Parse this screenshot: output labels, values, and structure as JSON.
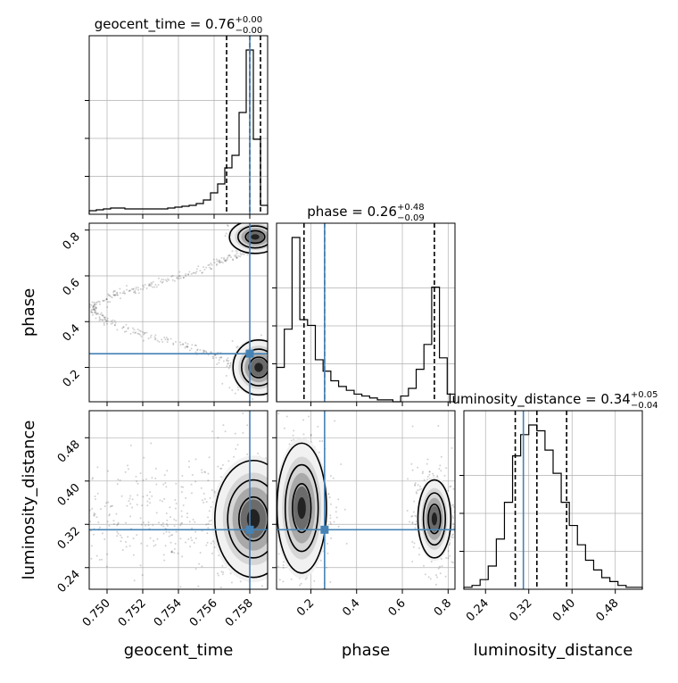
{
  "chart_data": {
    "type": "corner",
    "colors": {
      "truth": "#4682b4",
      "contour": "#000000",
      "grid": "#b0b0b0",
      "quantile": "#000000"
    },
    "parameters": [
      {
        "id": "geocent_time",
        "label": "geocent_time",
        "range": [
          0.749,
          0.759
        ],
        "title_prefix": "geocent_time = ",
        "title_value": "0.76",
        "title_plus": "+0.00",
        "title_minus": "−0.00",
        "truth": 0.758,
        "quantiles": [
          0.7567,
          0.758,
          0.7586
        ],
        "ticks": [
          0.75,
          0.752,
          0.754,
          0.756,
          0.758
        ],
        "tick_labels": [
          "0.750",
          "0.752",
          "0.754",
          "0.756",
          "0.758"
        ],
        "hist": [
          0.02,
          0.025,
          0.03,
          0.035,
          0.035,
          0.03,
          0.03,
          0.03,
          0.03,
          0.03,
          0.03,
          0.035,
          0.04,
          0.045,
          0.05,
          0.06,
          0.08,
          0.12,
          0.17,
          0.26,
          0.33,
          0.57,
          0.92,
          0.42,
          0.05
        ]
      },
      {
        "id": "phase",
        "label": "phase",
        "range": [
          0.05,
          0.83
        ],
        "title_prefix": "phase = ",
        "title_value": "0.26",
        "title_plus": "+0.48",
        "title_minus": "−0.09",
        "truth": 0.26,
        "quantiles": [
          0.17,
          0.26,
          0.74
        ],
        "ticks": [
          0.2,
          0.4,
          0.6,
          0.8
        ],
        "tick_labels": [
          "0.2",
          "0.4",
          "0.6",
          "0.8"
        ],
        "hist": [
          0.18,
          0.38,
          0.86,
          0.43,
          0.4,
          0.22,
          0.16,
          0.11,
          0.08,
          0.06,
          0.04,
          0.03,
          0.02,
          0.01,
          0.01,
          0.0,
          0.03,
          0.07,
          0.17,
          0.3,
          0.6,
          0.23,
          0.04
        ]
      },
      {
        "id": "luminosity_distance",
        "label": "luminosity_distance",
        "range": [
          0.2,
          0.53
        ],
        "title_prefix": "luminosity_distance = ",
        "title_value": "0.34",
        "title_plus": "+0.05",
        "title_minus": "−0.04",
        "truth": 0.31,
        "quantiles": [
          0.295,
          0.335,
          0.39
        ],
        "ticks": [
          0.24,
          0.32,
          0.4,
          0.48
        ],
        "tick_labels": [
          "0.24",
          "0.32",
          "0.40",
          "0.48"
        ],
        "hist": [
          0.01,
          0.02,
          0.05,
          0.12,
          0.26,
          0.45,
          0.69,
          0.8,
          0.85,
          0.82,
          0.72,
          0.6,
          0.45,
          0.33,
          0.23,
          0.15,
          0.1,
          0.06,
          0.04,
          0.02,
          0.01,
          0.01
        ]
      }
    ],
    "pairs": [
      {
        "x": "geocent_time",
        "y": "phase",
        "modes": [
          {
            "x": 0.7585,
            "y": 0.2,
            "sx": 0.0006,
            "sy": 0.05
          },
          {
            "x": 0.7583,
            "y": 0.77,
            "sx": 0.0006,
            "sy": 0.03
          }
        ]
      },
      {
        "x": "geocent_time",
        "y": "luminosity_distance",
        "modes": [
          {
            "x": 0.7582,
            "y": 0.33,
            "sx": 0.0009,
            "sy": 0.045
          }
        ]
      },
      {
        "x": "phase",
        "y": "luminosity_distance",
        "modes": [
          {
            "x": 0.16,
            "y": 0.35,
            "sx": 0.045,
            "sy": 0.05
          },
          {
            "x": 0.74,
            "y": 0.33,
            "sx": 0.03,
            "sy": 0.03
          }
        ]
      }
    ],
    "grid": true
  }
}
